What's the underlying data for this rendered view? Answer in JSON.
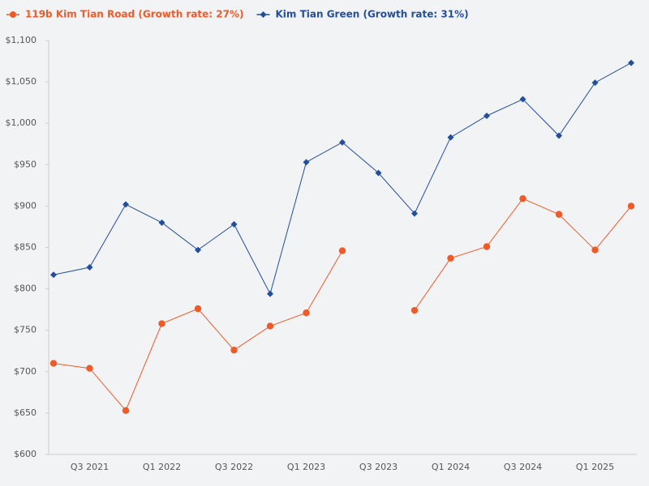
{
  "chart_data": {
    "type": "line",
    "categories": [
      null,
      "Q3 2021",
      null,
      "Q1 2022",
      null,
      "Q3 2022",
      null,
      "Q1 2023",
      null,
      "Q3 2023",
      null,
      "Q1 2024",
      null,
      "Q3 2024",
      null,
      "Q1 2025",
      null
    ],
    "series": [
      {
        "name": "119b Kim Tian Road (Growth rate: 27%)",
        "color": "#f05a28",
        "marker": "circle",
        "values": [
          710,
          704,
          653,
          758,
          776,
          726,
          755,
          771,
          846,
          null,
          774,
          837,
          851,
          909,
          890,
          847,
          900
        ]
      },
      {
        "name": "Kim Tian Green (Growth rate: 31%)",
        "color": "#234e9b",
        "marker": "diamond",
        "values": [
          817,
          826,
          902,
          880,
          847,
          878,
          794,
          953,
          977,
          940,
          891,
          983,
          1009,
          1029,
          985,
          1049,
          1073
        ]
      }
    ],
    "ylim": [
      600,
      1100
    ],
    "yticks": [
      {
        "value": 600,
        "label": "$600"
      },
      {
        "value": 650,
        "label": "$650"
      },
      {
        "value": 700,
        "label": "$700"
      },
      {
        "value": 750,
        "label": "$750"
      },
      {
        "value": 800,
        "label": "$800"
      },
      {
        "value": 850,
        "label": "$850"
      },
      {
        "value": 900,
        "label": "$900"
      },
      {
        "value": 950,
        "label": "$950"
      },
      {
        "value": 1000,
        "label": "$1,000"
      },
      {
        "value": 1050,
        "label": "$1,050"
      },
      {
        "value": 1100,
        "label": "$1,100"
      }
    ],
    "grid": false,
    "legend": "top-left"
  }
}
